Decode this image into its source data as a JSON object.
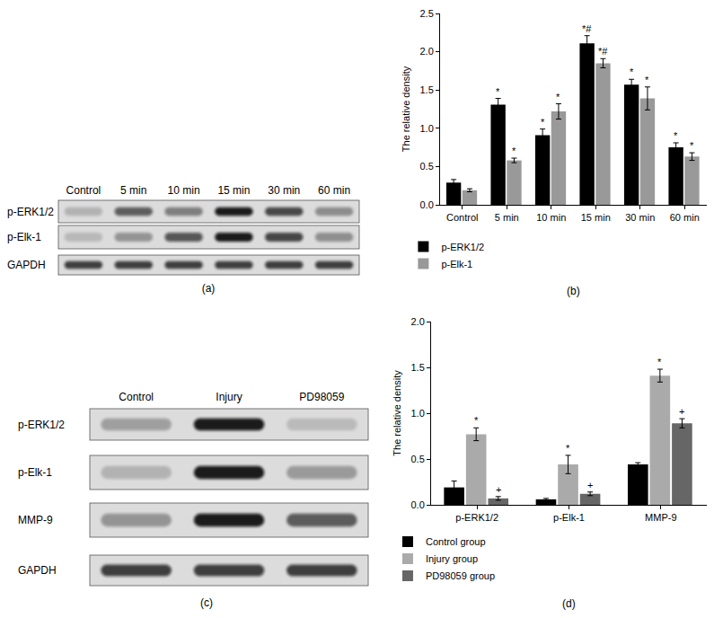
{
  "chart_data": [
    {
      "type": "bar",
      "panel_label": "(b)",
      "y_label": "The relative density",
      "categories": [
        "Control",
        "5 min",
        "10 min",
        "15 min",
        "30 min",
        "60 min"
      ],
      "ylim": [
        0,
        2.5
      ],
      "yticks": [
        {
          "value": 0,
          "label": "0.0"
        },
        0.5,
        {
          "value": 1,
          "label": "1.0"
        },
        1.5,
        {
          "value": 2,
          "label": "2.0"
        },
        2.5
      ],
      "legend": "bottom left",
      "series": [
        {
          "name": "p-ERK1/2",
          "color": "#000000",
          "values": [
            0.29,
            1.31,
            0.91,
            2.11,
            1.57,
            0.75
          ],
          "errors": [
            0.04,
            0.08,
            0.08,
            0.1,
            0.07,
            0.06
          ],
          "significance": [
            null,
            "*",
            "*",
            "*#",
            "*",
            "*"
          ]
        },
        {
          "name": "p-Elk-1",
          "color": "#999999",
          "values": [
            0.19,
            0.58,
            1.22,
            1.85,
            1.39,
            0.63
          ],
          "errors": [
            0.02,
            0.03,
            0.1,
            0.06,
            0.15,
            0.05
          ],
          "significance": [
            null,
            "*",
            "*",
            "*#",
            "*",
            "*"
          ]
        }
      ]
    },
    {
      "type": "bar",
      "panel_label": "(d)",
      "y_label": "The relative density",
      "categories": [
        "p-ERK1/2",
        "p-Elk-1",
        "MMP-9"
      ],
      "ylim": [
        0,
        2
      ],
      "yticks": [
        {
          "value": 0,
          "label": "0.0"
        },
        0.5,
        {
          "value": 1,
          "label": "1.0"
        },
        1.5,
        {
          "value": 2,
          "label": "2.0"
        }
      ],
      "legend": "bottom left",
      "series": [
        {
          "name": "Control group",
          "color": "#000000",
          "values": [
            0.19,
            0.06,
            0.44
          ],
          "errors": [
            0.07,
            0.01,
            0.02
          ]
        },
        {
          "name": "Injury group",
          "color": "#aaaaaa",
          "values": [
            0.77,
            0.44,
            1.41
          ],
          "errors": [
            0.07,
            0.1,
            0.07
          ],
          "significance": [
            "*",
            "*",
            "*"
          ]
        },
        {
          "name": "PD98059 group",
          "color": "#666666",
          "values": [
            0.07,
            0.12,
            0.89
          ],
          "errors": [
            0.02,
            0.02,
            0.05
          ],
          "significance": [
            "+",
            "+",
            "+"
          ]
        }
      ]
    }
  ],
  "blots": [
    {
      "panel_label": "(a)",
      "lanes": [
        "Control",
        "5 min",
        "10 min",
        "15 min",
        "30 min",
        "60 min"
      ],
      "rows": [
        "p-ERK1/2",
        "p-Elk-1",
        "GAPDH"
      ]
    },
    {
      "panel_label": "(c)",
      "lanes": [
        "Control",
        "Injury",
        "PD98059"
      ],
      "rows": [
        "p-ERK1/2",
        "p-Elk-1",
        "MMP-9",
        "GAPDH"
      ]
    }
  ]
}
